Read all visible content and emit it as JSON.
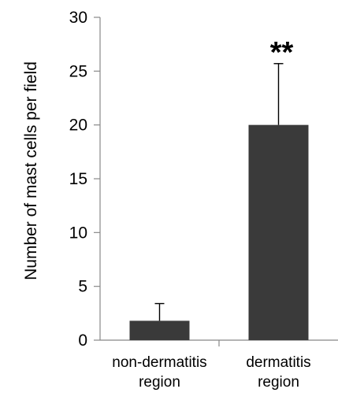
{
  "chart_data": {
    "type": "bar",
    "categories": [
      [
        "non-dermatitis",
        "region"
      ],
      [
        "dermatitis",
        "region"
      ]
    ],
    "values": [
      1.8,
      20.0
    ],
    "error_bars_upper": [
      1.6,
      5.7
    ],
    "ylabel": "Number of mast cells per field",
    "xlabel": "",
    "ylim": [
      0,
      30
    ],
    "yticks": [
      0,
      5,
      10,
      15,
      20,
      25,
      30
    ],
    "grid": false,
    "annotations": [
      {
        "category_index": 1,
        "text": "**"
      }
    ],
    "bar_color": "#3a3a3a"
  }
}
